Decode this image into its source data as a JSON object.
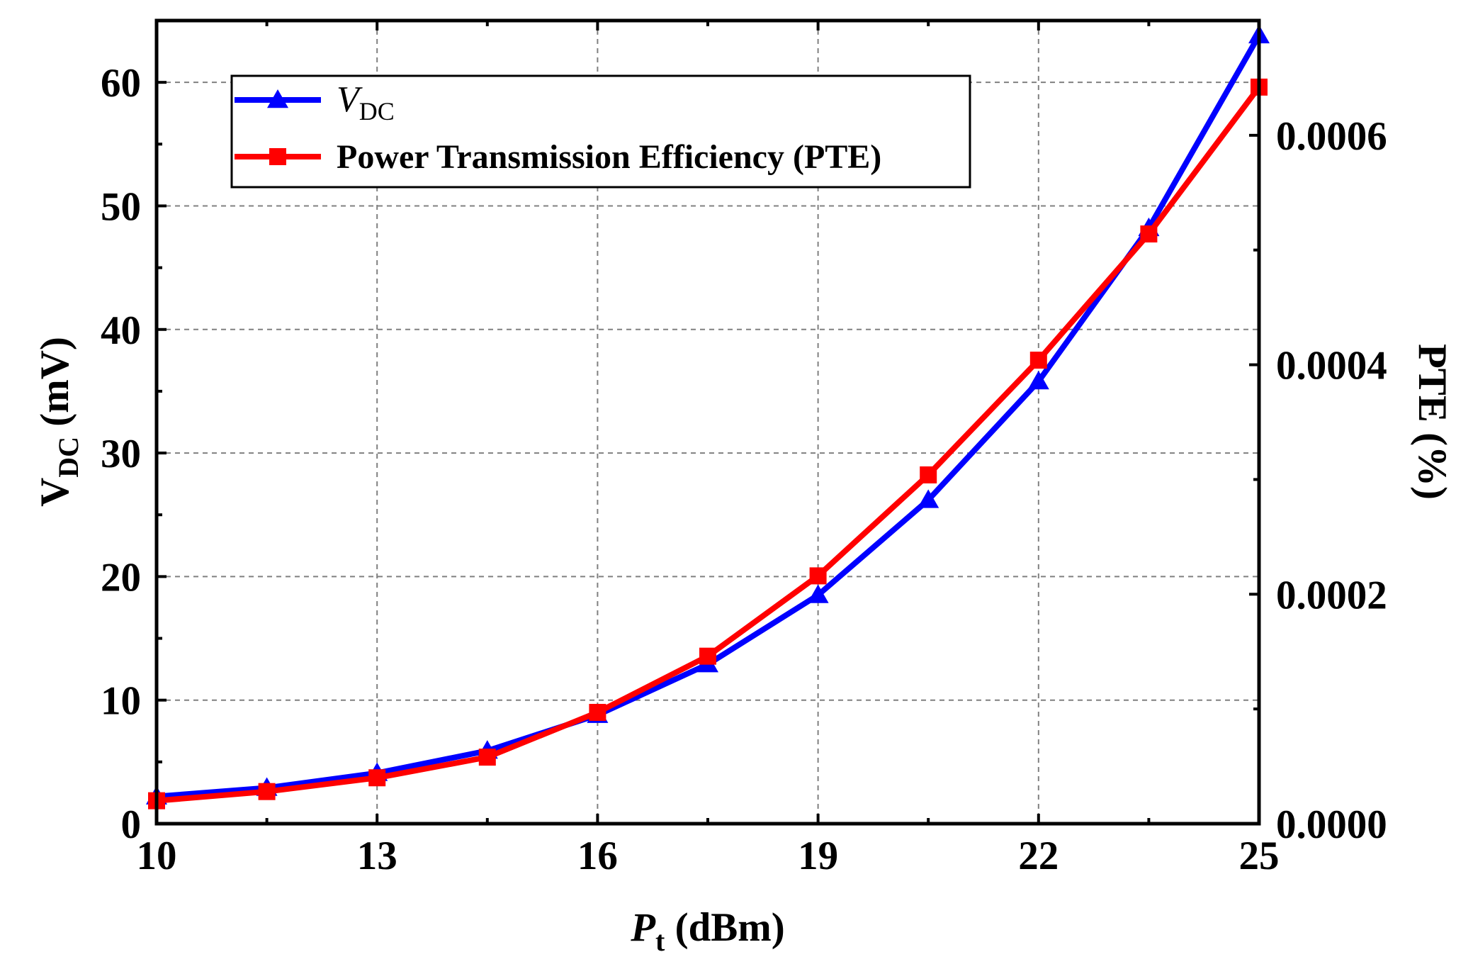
{
  "chart_data": {
    "type": "line",
    "x": [
      10,
      11.5,
      13,
      14.5,
      16,
      17.5,
      19,
      20.5,
      22,
      23.5,
      25
    ],
    "xlim": [
      10,
      25
    ],
    "xticks": [
      10,
      13,
      16,
      19,
      22,
      25
    ],
    "xlabel": {
      "main": "P",
      "sub": "t",
      "suffix": " (dBm)"
    },
    "ylabel": {
      "main": "V",
      "sub": "DC",
      "suffix": " (mV)"
    },
    "ylim": [
      0,
      65
    ],
    "yticks": [
      0,
      10,
      20,
      30,
      40,
      50,
      60
    ],
    "y2label": "PTE (%)",
    "y2lim": [
      0,
      0.0007
    ],
    "y2ticks": [
      "0.0000",
      "0.0002",
      "0.0004",
      "0.0006"
    ],
    "grid": true,
    "legend_position": "top-left",
    "series": [
      {
        "name": "V_DC",
        "legend_main": "V",
        "legend_sub": "DC",
        "axis": "left",
        "color": "#0000ff",
        "marker": "triangle",
        "values": [
          2.2,
          2.9,
          4.1,
          5.9,
          8.8,
          12.9,
          18.5,
          26.2,
          35.8,
          48.2,
          63.8
        ]
      },
      {
        "name": "Power Transmission Efficiency (PTE)",
        "legend_main": "Power Transmission Efficiency (PTE)",
        "legend_sub": "",
        "axis": "right",
        "color": "#ff0000",
        "marker": "square",
        "values": [
          2e-05,
          2.8e-05,
          4e-05,
          5.8e-05,
          9.7e-05,
          0.000146,
          0.000216,
          0.000304,
          0.000404,
          0.000514,
          0.000642
        ]
      }
    ]
  }
}
